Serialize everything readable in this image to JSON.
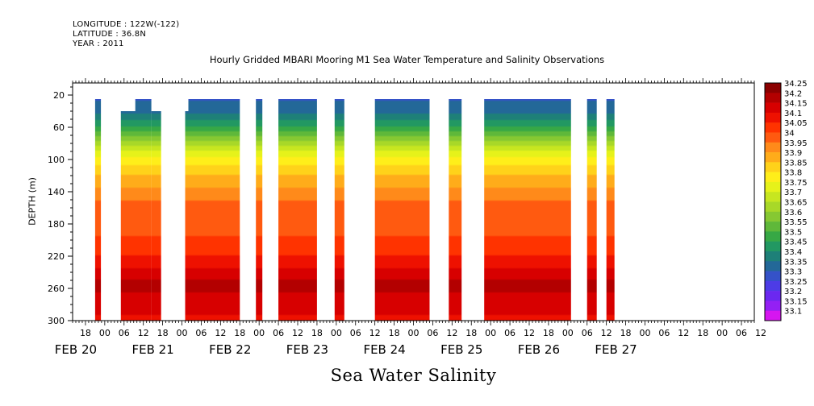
{
  "header": {
    "longitude": "LONGITUDE : 122W(-122)",
    "latitude": "LATITUDE : 36.8N",
    "year": "YEAR : 2011"
  },
  "chart_data": {
    "type": "heatmap",
    "title": "Hourly Gridded MBARI Mooring M1 Sea Water Temperature and Salinity Observations",
    "xlabel": "Sea Water Salinity",
    "ylabel": "DEPTH (m)",
    "ylim": [
      300,
      0
    ],
    "yticks": [
      20,
      60,
      100,
      140,
      180,
      220,
      260,
      300
    ],
    "xlim_hours": [
      -10,
      202
    ],
    "x_tick_labels": [
      {
        "hour": -6,
        "label": "18"
      },
      {
        "hour": 0,
        "label": "00"
      },
      {
        "hour": 6,
        "label": "06"
      },
      {
        "hour": 12,
        "label": "12"
      },
      {
        "hour": 18,
        "label": "18"
      },
      {
        "hour": 24,
        "label": "00"
      },
      {
        "hour": 30,
        "label": "06"
      },
      {
        "hour": 36,
        "label": "12"
      },
      {
        "hour": 42,
        "label": "18"
      },
      {
        "hour": 48,
        "label": "00"
      },
      {
        "hour": 54,
        "label": "06"
      },
      {
        "hour": 60,
        "label": "12"
      },
      {
        "hour": 66,
        "label": "18"
      },
      {
        "hour": 72,
        "label": "00"
      },
      {
        "hour": 78,
        "label": "06"
      },
      {
        "hour": 84,
        "label": "12"
      },
      {
        "hour": 90,
        "label": "18"
      },
      {
        "hour": 96,
        "label": "00"
      },
      {
        "hour": 102,
        "label": "06"
      },
      {
        "hour": 108,
        "label": "12"
      },
      {
        "hour": 114,
        "label": "18"
      },
      {
        "hour": 120,
        "label": "00"
      },
      {
        "hour": 126,
        "label": "06"
      },
      {
        "hour": 132,
        "label": "12"
      },
      {
        "hour": 138,
        "label": "18"
      },
      {
        "hour": 144,
        "label": "00"
      },
      {
        "hour": 150,
        "label": "06"
      },
      {
        "hour": 156,
        "label": "12"
      },
      {
        "hour": 162,
        "label": "18"
      },
      {
        "hour": 168,
        "label": "00"
      },
      {
        "hour": 174,
        "label": "06"
      },
      {
        "hour": 180,
        "label": "12"
      },
      {
        "hour": 186,
        "label": "18"
      },
      {
        "hour": 192,
        "label": "00"
      },
      {
        "hour": 198,
        "label": "06"
      },
      {
        "hour": 204,
        "label": "12"
      }
    ],
    "date_labels": [
      {
        "hour": -6,
        "label": "FEB 20"
      },
      {
        "hour": 18,
        "label": "FEB 21"
      },
      {
        "hour": 42,
        "label": "FEB 22"
      },
      {
        "hour": 66,
        "label": "FEB 23"
      },
      {
        "hour": 90,
        "label": "FEB 24"
      },
      {
        "hour": 114,
        "label": "FEB 25"
      },
      {
        "hour": 138,
        "label": "FEB 26"
      },
      {
        "hour": 162,
        "label": "FEB 27"
      }
    ],
    "colorbar": {
      "levels": [
        "34.25",
        "34.2",
        "34.15",
        "34.1",
        "34.05",
        "34",
        "33.95",
        "33.9",
        "33.85",
        "33.8",
        "33.75",
        "33.7",
        "33.65",
        "33.6",
        "33.55",
        "33.5",
        "33.45",
        "33.4",
        "33.35",
        "33.3",
        "33.25",
        "33.2",
        "33.15",
        "33.1"
      ],
      "colors": [
        "#8b0000",
        "#b30000",
        "#d70000",
        "#ee1100",
        "#ff3300",
        "#ff5a10",
        "#ff8a1a",
        "#ffac1a",
        "#ffd21a",
        "#ffee1a",
        "#e6f21a",
        "#c7e620",
        "#a8d828",
        "#86c832",
        "#5fb83a",
        "#37a845",
        "#229862",
        "#1e8078",
        "#236898",
        "#3552c8",
        "#4d3ce6",
        "#6b28f0",
        "#9420f4",
        "#d616f0"
      ]
    },
    "data_segments_hours": [
      {
        "start": -3.0,
        "end": -1.2,
        "top_depth": 20
      },
      {
        "start": 5.0,
        "end": 14.5,
        "top_depth": 40
      },
      {
        "start": 9.5,
        "end": 14.5,
        "top_depth": 20
      },
      {
        "start": 14.5,
        "end": 17.5,
        "top_depth": 40
      },
      {
        "start": 25.0,
        "end": 26.0,
        "top_depth": 40
      },
      {
        "start": 26.0,
        "end": 42.0,
        "top_depth": 20
      },
      {
        "start": 47.0,
        "end": 49.0,
        "top_depth": 20
      },
      {
        "start": 54.0,
        "end": 66.0,
        "top_depth": 20
      },
      {
        "start": 71.5,
        "end": 74.5,
        "top_depth": 20
      },
      {
        "start": 84.0,
        "end": 101.0,
        "top_depth": 20
      },
      {
        "start": 107.0,
        "end": 111.0,
        "top_depth": 20
      },
      {
        "start": 118.0,
        "end": 145.0,
        "top_depth": 20
      },
      {
        "start": 150.0,
        "end": 153.0,
        "top_depth": 20
      },
      {
        "start": 156.0,
        "end": 158.5,
        "top_depth": 20
      }
    ],
    "depth_profile": [
      {
        "depth": 20,
        "salinity": 33.33
      },
      {
        "depth": 40,
        "salinity": 33.38
      },
      {
        "depth": 60,
        "salinity": 33.5
      },
      {
        "depth": 80,
        "salinity": 33.68
      },
      {
        "depth": 100,
        "salinity": 33.82
      },
      {
        "depth": 120,
        "salinity": 33.9
      },
      {
        "depth": 140,
        "salinity": 33.97
      },
      {
        "depth": 160,
        "salinity": 34.02
      },
      {
        "depth": 190,
        "salinity": 34.04
      },
      {
        "depth": 220,
        "salinity": 34.1
      },
      {
        "depth": 240,
        "salinity": 34.17
      },
      {
        "depth": 255,
        "salinity": 34.22
      },
      {
        "depth": 275,
        "salinity": 34.18
      },
      {
        "depth": 300,
        "salinity": 34.14
      }
    ],
    "grid": false
  }
}
